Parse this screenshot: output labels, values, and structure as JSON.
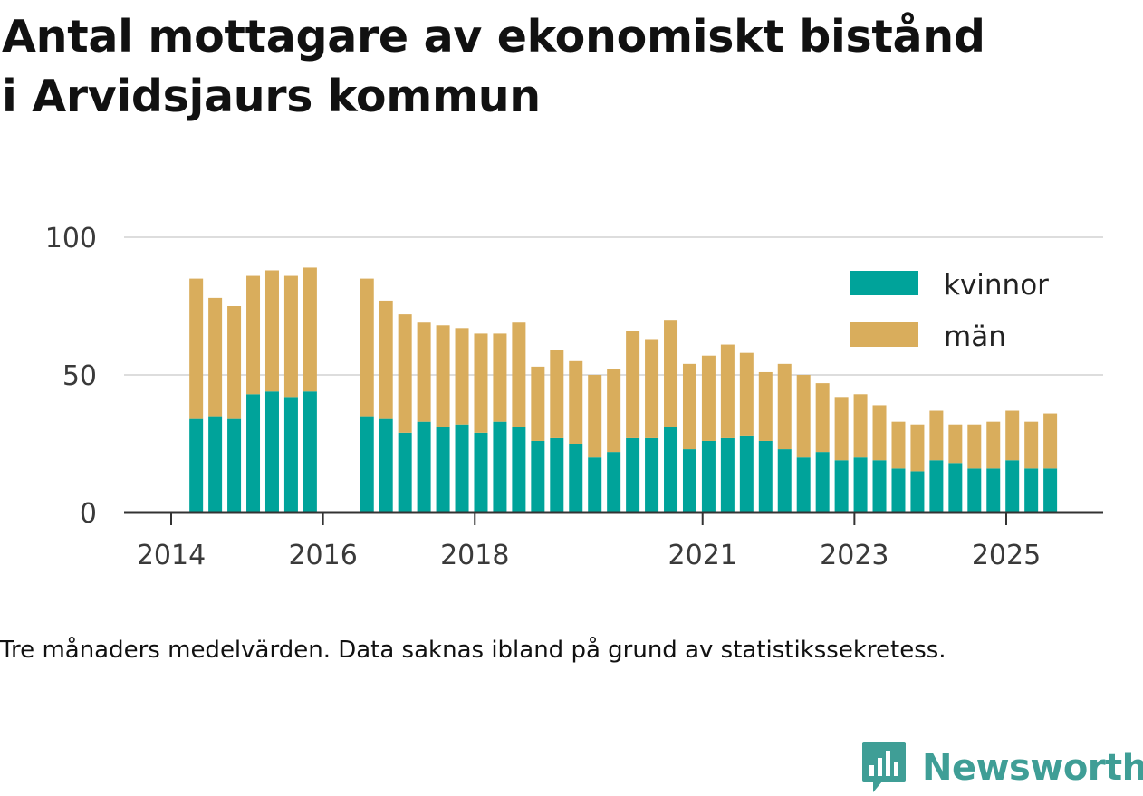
{
  "title_lines": [
    "Antal mottagare av ekonomiskt bistånd",
    "i Arvidsjaurs kommun"
  ],
  "note": "Tre månaders medelvärden. Data saknas ibland på grund av statistikssekretess.",
  "brand": {
    "name": "Newsworthy",
    "icon": "newsworthy-logo-icon"
  },
  "colors": {
    "kvinnor": "#00a39a",
    "man": "#d9ad5c",
    "grid": "#dddddd",
    "axis": "#333333",
    "brand": "#3f9e96"
  },
  "chart_data": {
    "type": "bar",
    "stacked": true,
    "title": "Antal mottagare av ekonomiskt bistånd i Arvidsjaurs kommun",
    "xlabel": "",
    "ylabel": "",
    "ylim": [
      0,
      100
    ],
    "yticks": [
      0,
      50,
      100
    ],
    "xticks": [
      {
        "label": "2014",
        "at": 2014.0
      },
      {
        "label": "2016",
        "at": 2016.0
      },
      {
        "label": "2018",
        "at": 2018.0
      },
      {
        "label": "2021",
        "at": 2021.0
      },
      {
        "label": "2023",
        "at": 2023.0
      },
      {
        "label": "2025",
        "at": 2025.0
      }
    ],
    "legend": [
      "kvinnor",
      "män"
    ],
    "legend_position": "top-right",
    "x": [
      2014.33,
      2014.58,
      2014.83,
      2015.08,
      2015.33,
      2015.58,
      2015.83,
      2016.58,
      2016.83,
      2017.08,
      2017.33,
      2017.58,
      2017.83,
      2018.08,
      2018.33,
      2018.58,
      2018.83,
      2019.08,
      2019.33,
      2019.58,
      2019.83,
      2020.08,
      2020.33,
      2020.58,
      2020.83,
      2021.08,
      2021.33,
      2021.58,
      2021.83,
      2022.08,
      2022.33,
      2022.58,
      2022.83,
      2023.08,
      2023.33,
      2023.58,
      2023.83,
      2024.08,
      2024.33,
      2024.58,
      2024.83,
      2025.08,
      2025.33,
      2025.58
    ],
    "series": [
      {
        "name": "kvinnor",
        "values": [
          34,
          35,
          34,
          43,
          44,
          42,
          44,
          35,
          34,
          29,
          33,
          31,
          32,
          29,
          33,
          31,
          26,
          27,
          25,
          20,
          22,
          27,
          27,
          31,
          23,
          26,
          27,
          28,
          26,
          23,
          20,
          22,
          19,
          20,
          19,
          16,
          15,
          19,
          18,
          16,
          16,
          19,
          16,
          16
        ]
      },
      {
        "name": "män",
        "values": [
          51,
          43,
          41,
          43,
          44,
          44,
          45,
          50,
          43,
          43,
          36,
          37,
          35,
          36,
          32,
          38,
          27,
          32,
          30,
          30,
          30,
          39,
          36,
          39,
          31,
          31,
          34,
          30,
          25,
          31,
          30,
          25,
          23,
          23,
          20,
          17,
          17,
          18,
          14,
          16,
          17,
          18,
          17,
          20
        ]
      }
    ]
  }
}
